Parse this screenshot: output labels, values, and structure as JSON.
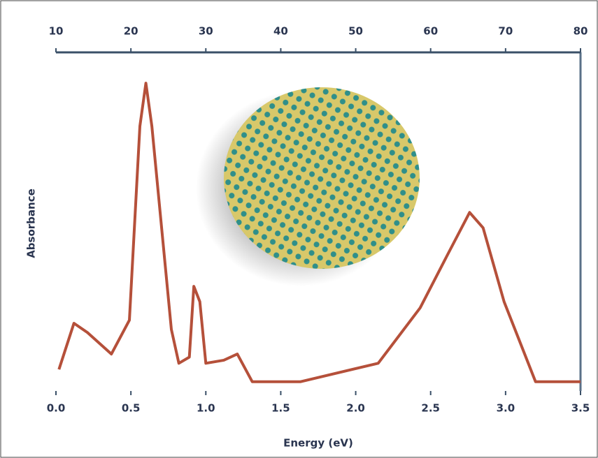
{
  "chart_data": {
    "type": "line",
    "x_label": "Energy (eV)",
    "y_label": "Absorbance",
    "x": [
      0.02,
      0.12,
      0.21,
      0.37,
      0.49,
      0.56,
      0.6,
      0.64,
      0.77,
      0.82,
      0.89,
      0.92,
      0.96,
      1.0,
      1.12,
      1.21,
      1.31,
      1.63,
      2.15,
      2.43,
      2.61,
      2.76,
      2.85,
      2.99,
      3.2,
      3.5
    ],
    "series": [
      {
        "color": "#b5503a",
        "values": [
          0.07,
          0.22,
          0.19,
          0.12,
          0.23,
          0.86,
          1.0,
          0.86,
          0.2,
          0.09,
          0.11,
          0.34,
          0.29,
          0.09,
          0.1,
          0.12,
          0.03,
          0.03,
          0.09,
          0.27,
          0.44,
          0.58,
          0.53,
          0.29,
          0.03,
          0.03
        ]
      }
    ],
    "xlim": [
      0,
      3.5
    ],
    "xticks": [
      {
        "value": 0,
        "label": "0.0"
      },
      0.5,
      {
        "value": 1,
        "label": "1.0"
      },
      1.5,
      {
        "value": 2,
        "label": "2.0"
      },
      2.5,
      {
        "value": 3,
        "label": "3.0"
      },
      3.5
    ],
    "ylim": [
      0,
      1.1
    ],
    "top_xlim": [
      10,
      80
    ],
    "top_xticks": [
      10,
      20,
      30,
      40,
      50,
      60,
      70,
      80
    ]
  }
}
